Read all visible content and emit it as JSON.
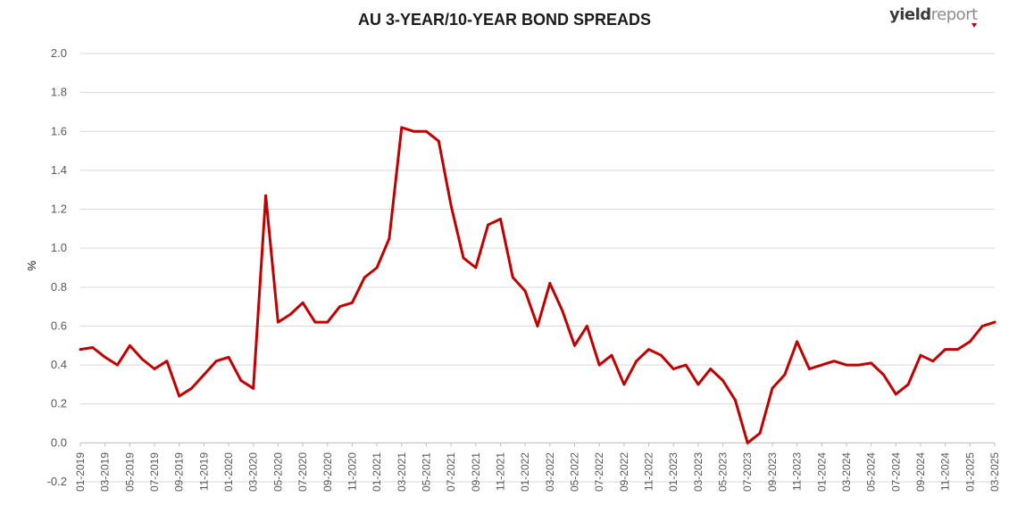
{
  "chart_data": {
    "type": "line",
    "title": "AU 3-YEAR/10-YEAR BOND SPREADS",
    "ylabel": "%",
    "xlabel": "",
    "ylim": [
      -0.2,
      2.0
    ],
    "yticks": [
      "2.0",
      "1.8",
      "1.6",
      "1.4",
      "1.2",
      "1.0",
      "0.8",
      "0.6",
      "0.4",
      "0.2",
      "0.0",
      "-0.2"
    ],
    "xticks": [
      "01-2019",
      "03-2019",
      "05-2019",
      "07-2019",
      "09-2019",
      "11-2019",
      "01-2020",
      "03-2020",
      "05-2020",
      "07-2020",
      "09-2020",
      "11-2020",
      "01-2021",
      "03-2021",
      "05-2021",
      "07-2021",
      "09-2021",
      "11-2021",
      "01-2022",
      "03-2022",
      "05-2022",
      "07-2022",
      "09-2022",
      "11-2022",
      "01-2023",
      "03-2023",
      "05-2023",
      "07-2023",
      "09-2023",
      "11-2023",
      "01-2024",
      "03-2024",
      "05-2024",
      "07-2024",
      "09-2024",
      "11-2024",
      "01-2025",
      "03-2025"
    ],
    "grid": true,
    "legend": "none",
    "line_color": "#c00000",
    "series": [
      {
        "x": [
          "2019-01",
          "2019-02",
          "2019-03",
          "2019-04",
          "2019-05",
          "2019-06",
          "2019-07",
          "2019-08",
          "2019-09",
          "2019-10",
          "2019-11",
          "2019-12",
          "2020-01",
          "2020-02",
          "2020-03",
          "2020-04",
          "2020-05",
          "2020-06",
          "2020-07",
          "2020-08",
          "2020-09",
          "2020-10",
          "2020-11",
          "2020-12",
          "2021-01",
          "2021-02",
          "2021-03",
          "2021-04",
          "2021-05",
          "2021-06",
          "2021-07",
          "2021-08",
          "2021-09",
          "2021-10",
          "2021-11",
          "2021-12",
          "2022-01",
          "2022-02",
          "2022-03",
          "2022-04",
          "2022-05",
          "2022-06",
          "2022-07",
          "2022-08",
          "2022-09",
          "2022-10",
          "2022-11",
          "2022-12",
          "2023-01",
          "2023-02",
          "2023-03",
          "2023-04",
          "2023-05",
          "2023-06",
          "2023-07",
          "2023-08",
          "2023-09",
          "2023-10",
          "2023-11",
          "2023-12",
          "2024-01",
          "2024-02",
          "2024-03",
          "2024-04",
          "2024-05",
          "2024-06",
          "2024-07",
          "2024-08",
          "2024-09",
          "2024-10",
          "2024-11",
          "2024-12",
          "2025-01",
          "2025-02",
          "2025-03"
        ],
        "values": [
          0.48,
          0.49,
          0.44,
          0.4,
          0.5,
          0.43,
          0.38,
          0.42,
          0.24,
          0.28,
          0.35,
          0.42,
          0.44,
          0.32,
          0.28,
          1.27,
          0.62,
          0.66,
          0.72,
          0.62,
          0.62,
          0.7,
          0.72,
          0.85,
          0.9,
          1.05,
          1.62,
          1.6,
          1.6,
          1.55,
          1.22,
          0.95,
          0.9,
          1.12,
          1.15,
          0.85,
          0.78,
          0.6,
          0.82,
          0.68,
          0.5,
          0.6,
          0.4,
          0.45,
          0.3,
          0.42,
          0.48,
          0.45,
          0.38,
          0.4,
          0.3,
          0.38,
          0.32,
          0.22,
          0.0,
          0.05,
          0.28,
          0.35,
          0.52,
          0.38,
          0.4,
          0.42,
          0.4,
          0.4,
          0.41,
          0.35,
          0.25,
          0.3,
          0.45,
          0.42,
          0.48,
          0.48,
          0.52,
          0.6,
          0.62
        ]
      }
    ]
  },
  "brand": {
    "part1": "yield",
    "part2": "report"
  }
}
